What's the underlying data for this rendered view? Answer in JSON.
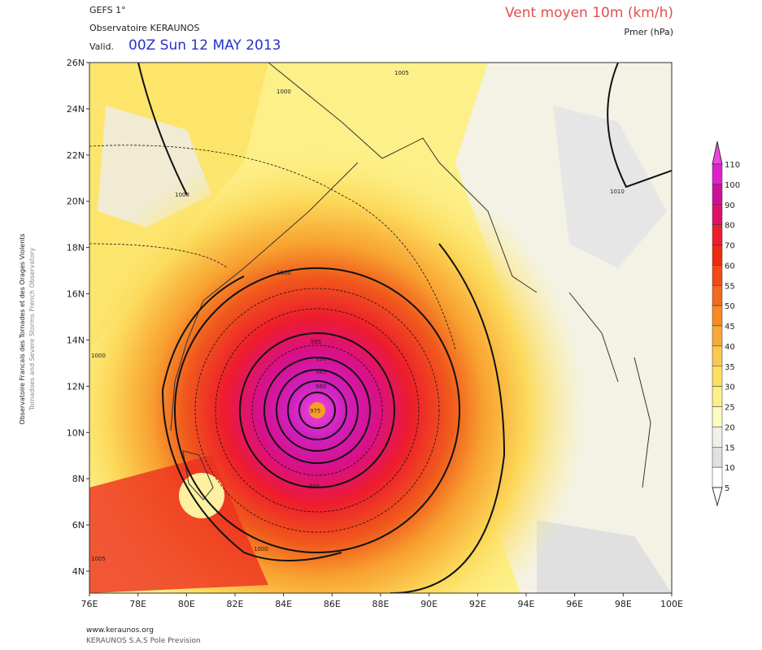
{
  "header": {
    "model": "GEFS 1°",
    "source": "Observatoire KERAUNOS",
    "valid_label": "Valid.",
    "valid_time": "00Z Sun 12 MAY 2013",
    "title": "Vent moyen 10m (km/h)",
    "subtitle": "Pmer (hPa)"
  },
  "side_text": [
    "Observatoire Francais des Tornades et des Orages Violents",
    "Tornadoes and Severe Storms French Observatory"
  ],
  "latitudes": [
    "26N",
    "24N",
    "22N",
    "20N",
    "18N",
    "16N",
    "14N",
    "12N",
    "10N",
    "8N",
    "6N",
    "4N"
  ],
  "longitudes": [
    "76E",
    "78E",
    "80E",
    "82E",
    "84E",
    "86E",
    "88E",
    "90E",
    "92E",
    "94E",
    "96E",
    "98E",
    "100E"
  ],
  "colorbar": [
    {
      "label": "110",
      "color": "#ee44dd"
    },
    {
      "label": "100",
      "color": "#dd22cc"
    },
    {
      "label": "90",
      "color": "#cc1199"
    },
    {
      "label": "80",
      "color": "#e0106a"
    },
    {
      "label": "70",
      "color": "#ee1c2c"
    },
    {
      "label": "60",
      "color": "#ee2a10"
    },
    {
      "label": "55",
      "color": "#f04a18"
    },
    {
      "label": "50",
      "color": "#f06a20"
    },
    {
      "label": "45",
      "color": "#f88a20"
    },
    {
      "label": "40",
      "color": "#f8a838"
    },
    {
      "label": "35",
      "color": "#fbc850"
    },
    {
      "label": "30",
      "color": "#fce060"
    },
    {
      "label": "25",
      "color": "#fdf088"
    },
    {
      "label": "20",
      "color": "#fefbc0"
    },
    {
      "label": "15",
      "color": "#f0f0e8"
    },
    {
      "label": "10",
      "color": "#e0e0e0"
    },
    {
      "label": "5",
      "color": "#ffffff"
    }
  ],
  "isobar_labels": [
    "1000",
    "1005",
    "1000",
    "1000",
    "1010",
    "1000",
    "995",
    "990",
    "985",
    "980",
    "975",
    "995",
    "1000",
    "1005"
  ],
  "footer": [
    "www.keraunos.org",
    "KERAUNOS S.A.S Pole Prevision"
  ]
}
